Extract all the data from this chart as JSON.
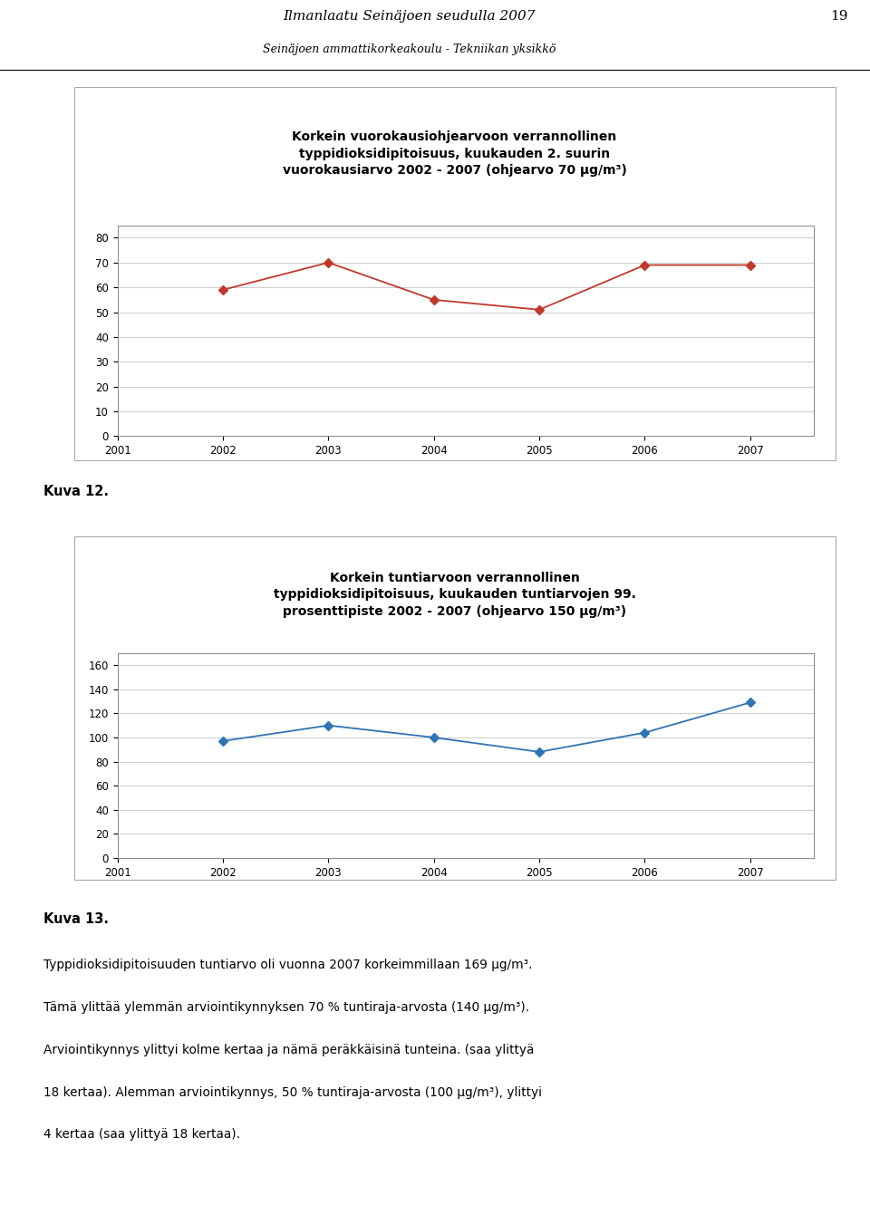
{
  "page_title1": "Ilmanlaatu Seinäjoen seudulla 2007",
  "page_title2": "Seinäjoen ammattikorkeakoulu - Tekniikan yksikkö",
  "page_number": "19",
  "chart1": {
    "title_line1": "Korkein vuorokausiohjearvoon verrannollinen",
    "title_line2": "typpidioksidipitoisuus, kuukauden 2. suurin",
    "title_line3": "vuorokausiarvo 2002 - 2007 (ohjearvo 70 µg/m³)",
    "x": [
      2002,
      2003,
      2004,
      2005,
      2006,
      2007
    ],
    "y": [
      59,
      70,
      55,
      51,
      69,
      69
    ],
    "xlim": [
      2001,
      2007.6
    ],
    "xticks": [
      2001,
      2002,
      2003,
      2004,
      2005,
      2006,
      2007
    ],
    "ylim": [
      0,
      85
    ],
    "yticks": [
      0,
      10,
      20,
      30,
      40,
      50,
      60,
      70,
      80
    ],
    "line_color": "#c0392b",
    "marker": "D",
    "marker_size": 5
  },
  "chart2": {
    "title_line1": "Korkein tuntiarvoon verrannollinen",
    "title_line2": "typpidioksidipitoisuus, kuukauden tuntiarvojen 99.",
    "title_line3": "prosenttipiste 2002 - 2007 (ohjearvo 150 µg/m³)",
    "x": [
      2002,
      2003,
      2004,
      2005,
      2006,
      2007
    ],
    "y": [
      97,
      110,
      100,
      88,
      104,
      129
    ],
    "xlim": [
      2001,
      2007.6
    ],
    "xticks": [
      2001,
      2002,
      2003,
      2004,
      2005,
      2006,
      2007
    ],
    "ylim": [
      0,
      170
    ],
    "yticks": [
      0,
      20,
      40,
      60,
      80,
      100,
      120,
      140,
      160
    ],
    "line_color": "#2e75b6",
    "marker": "D",
    "marker_size": 5
  },
  "kuva12_label": "Kuva 12.",
  "kuva13_label": "Kuva 13.",
  "body_text_lines": [
    "Typpidioksidipitoisuuden tuntiarvo oli vuonna 2007 korkeimmillaan 169 µg/m³.",
    "Tämä ylittää ylemmän arviointikynnyksen 70 % tuntiraja-arvosta (140 µg/m³).",
    "Arviointikynnys ylittyi kolme kertaa ja nämä peräkkäisinä tunteina. (saa ylittyä",
    "18 kertaa). Alemman arviointikynnys, 50 % tuntiraja-arvosta (100 µg/m³), ylittyi",
    "4 kertaa (saa ylittyä 18 kertaa)."
  ],
  "background_color": "#ffffff"
}
